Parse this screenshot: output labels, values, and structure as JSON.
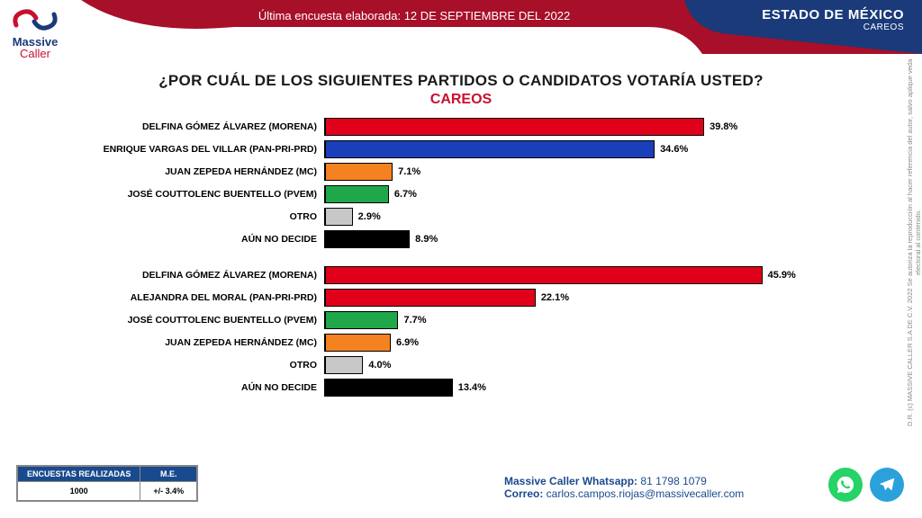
{
  "header": {
    "date_line_prefix": "Última encuesta elaborada: ",
    "date_line_value": "12 DE SEPTIEMBRE DEL 2022",
    "state": "ESTADO DE MÉXICO",
    "subtitle": "CAREOS",
    "curve_red": "#a80f28",
    "curve_blue": "#1a3a7a"
  },
  "logo": {
    "brand_top": "Massive",
    "brand_bottom": "Caller",
    "red": "#c8102e",
    "blue": "#1a3a7a"
  },
  "title": {
    "question": "¿POR CUÁL DE LOS SIGUIENTES PARTIDOS O CANDIDATOS VOTARÍA USTED?",
    "sub": "CAREOS"
  },
  "chart": {
    "type": "bar",
    "orientation": "horizontal",
    "x_max_pct": 50,
    "bar_border": "#000000",
    "label_fontsize": 10.5,
    "value_fontsize": 11,
    "groups": [
      {
        "items": [
          {
            "label": "DELFINA GÓMEZ ÁLVAREZ (MORENA)",
            "value": 39.8,
            "color": "#e1001a"
          },
          {
            "label": "ENRIQUE VARGAS DEL VILLAR (PAN-PRI-PRD)",
            "value": 34.6,
            "color": "#1a3fbb"
          },
          {
            "label": "JUAN ZEPEDA HERNÁNDEZ (MC)",
            "value": 7.1,
            "color": "#f58220"
          },
          {
            "label": "JOSÉ COUTTOLENC BUENTELLO (PVEM)",
            "value": 6.7,
            "color": "#1fa84a"
          },
          {
            "label": "OTRO",
            "value": 2.9,
            "color": "#c8c8c8"
          },
          {
            "label": "AÚN NO DECIDE",
            "value": 8.9,
            "color": "#000000"
          }
        ]
      },
      {
        "items": [
          {
            "label": "DELFINA GÓMEZ ÁLVAREZ (MORENA)",
            "value": 45.9,
            "color": "#e1001a"
          },
          {
            "label": "ALEJANDRA DEL MORAL (PAN-PRI-PRD)",
            "value": 22.1,
            "color": "#e1001a"
          },
          {
            "label": "JOSÉ COUTTOLENC BUENTELLO (PVEM)",
            "value": 7.7,
            "color": "#1fa84a"
          },
          {
            "label": "JUAN ZEPEDA HERNÁNDEZ (MC)",
            "value": 6.9,
            "color": "#f58220"
          },
          {
            "label": "OTRO",
            "value": 4.0,
            "color": "#c8c8c8"
          },
          {
            "label": "AÚN NO DECIDE",
            "value": 13.4,
            "color": "#000000"
          }
        ]
      }
    ]
  },
  "survey_box": {
    "h1": "ENCUESTAS REALIZADAS",
    "h2": "M.E.",
    "v1": "1000",
    "v2": "+/- 3.4%",
    "header_bg": "#1a4a8e"
  },
  "footer": {
    "whatsapp_label": "Massive Caller Whatsapp:",
    "whatsapp_value": " 81 1798 1079",
    "email_label": "Correo:",
    "email_value": " carlos.campos.riojas@massivecaller.com",
    "whatsapp_color": "#25d366",
    "telegram_color": "#2aa1da"
  },
  "copyright": "D.R. (c) MASSIVE CALLER S.A DE C.V. 2022   Se autoriza la reproducción al hacer referencia del autor, salvo aplique veda electoral al contenido."
}
